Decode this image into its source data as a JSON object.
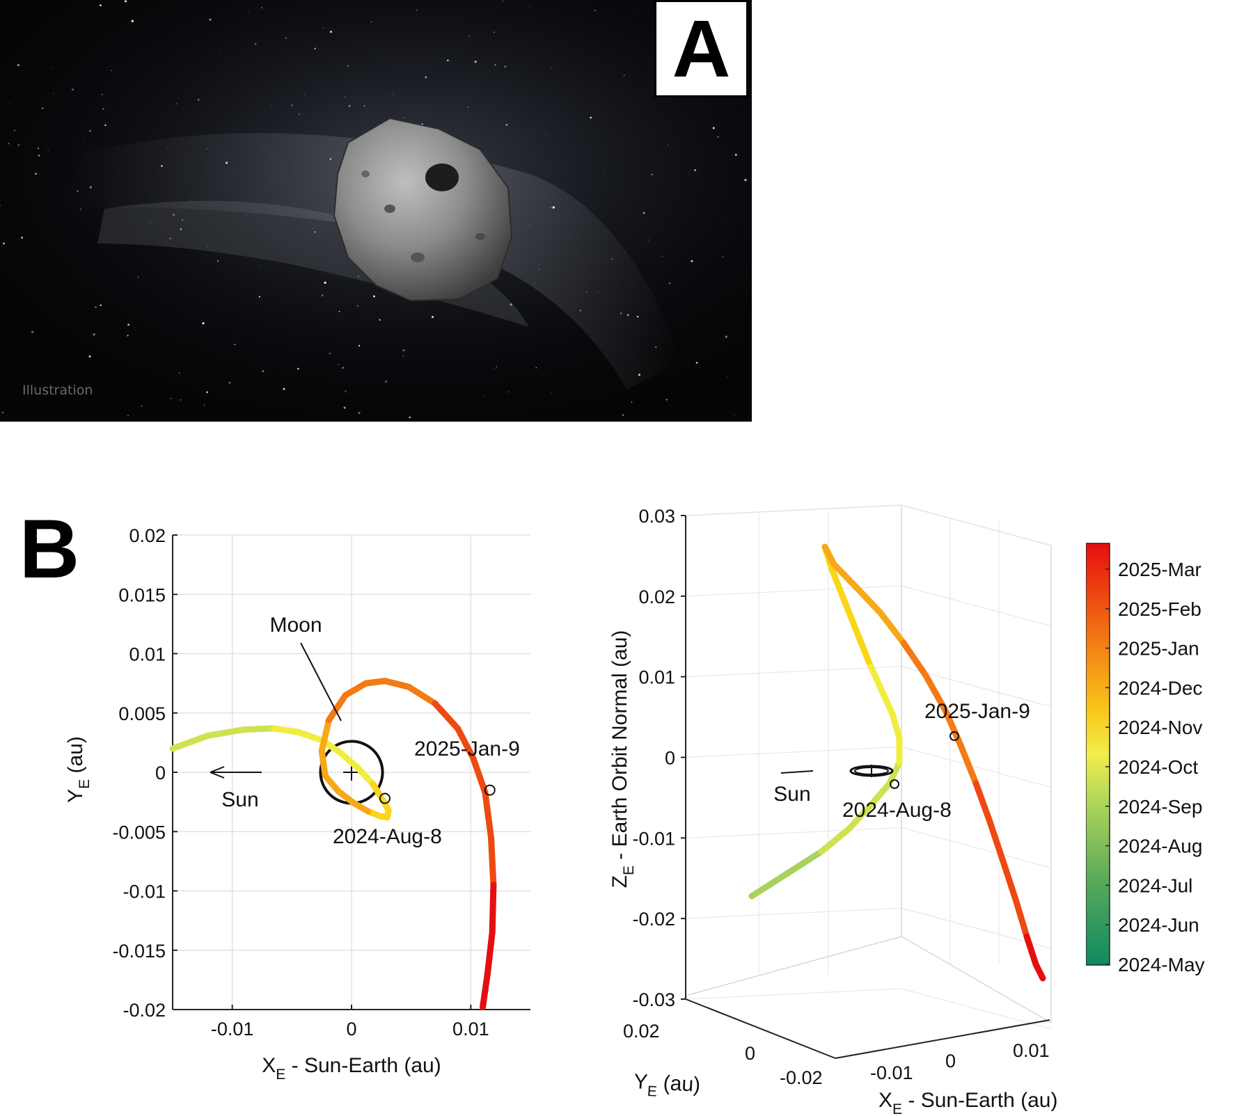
{
  "panel_a": {
    "letter": "A",
    "caption": "Illustration"
  },
  "panel_b": {
    "letter": "B"
  },
  "chart_data": [
    {
      "type": "line",
      "xlabel": "X_E - Sun-Earth (au)",
      "ylabel": "Y_E (au)",
      "xlim": [
        -0.015,
        0.015
      ],
      "ylim": [
        -0.02,
        0.02
      ],
      "xticks": [
        -0.01,
        0,
        0.01
      ],
      "xtick_labels": [
        "-0.01",
        "0",
        "0.01"
      ],
      "yticks": [
        0.02,
        0.015,
        0.01,
        0.005,
        0,
        -0.005,
        -0.01,
        -0.015,
        -0.02
      ],
      "ytick_labels": [
        "0.02",
        "0.015",
        "0.01",
        "0.005",
        "0",
        "-0.005",
        "-0.01",
        "-0.015",
        "-0.02"
      ],
      "grid": true,
      "colormap": "time",
      "series": [
        {
          "x": [
            -0.015,
            -0.012,
            -0.009,
            -0.0065,
            -0.0045,
            -0.0025,
            -0.001,
            0.0005,
            0.0018,
            0.0026,
            0.0031,
            0.003,
            0.0024,
            0.0014,
            0.0002,
            -0.0011,
            -0.0022,
            -0.0025,
            -0.0019,
            -0.0005,
            0.0012,
            0.0028,
            0.0048,
            0.007,
            0.0089,
            0.0102,
            0.0112,
            0.0117,
            0.0119,
            0.0118,
            0.0114,
            0.011
          ],
          "y": [
            0.002,
            0.0031,
            0.0036,
            0.0037,
            0.0034,
            0.0027,
            0.0017,
            0.0004,
            -0.001,
            -0.0023,
            -0.0032,
            -0.0038,
            -0.0037,
            -0.0033,
            -0.0026,
            -0.0016,
            -0.0003,
            0.0018,
            0.0044,
            0.0065,
            0.0075,
            0.0077,
            0.0072,
            0.0058,
            0.0037,
            0.0012,
            -0.0017,
            -0.0055,
            -0.0095,
            -0.0135,
            -0.017,
            -0.0198
          ]
        }
      ],
      "circle_markers": [
        {
          "x": 0.0028,
          "y": -0.0022
        },
        {
          "x": 0.0116,
          "y": -0.0015
        }
      ],
      "moon_orbit": {
        "center": [
          0,
          0
        ],
        "radius": 0.0026
      },
      "sun_arrow": {
        "from": [
          -0.0075,
          0
        ],
        "to": [
          -0.012,
          0
        ]
      },
      "annotations": [
        {
          "text": "Moon",
          "x": -0.0047,
          "y": 0.0122
        },
        {
          "text": "2025-Jan-9",
          "x": 0.0054,
          "y": 0.0019
        },
        {
          "text": "2024-Aug-8",
          "x": -0.0016,
          "y": -0.0055
        },
        {
          "text": "Sun",
          "x": -0.0095,
          "y": -0.0018
        }
      ]
    },
    {
      "type": "line",
      "projection": "3d",
      "xlabel": "X_E - Sun-Earth (au)",
      "ylabel": "Y_E (au)",
      "zlabel": "Z_E - Earth Orbit Normal (au)",
      "xtick_labels": [
        "-0.01",
        "0",
        "0.01"
      ],
      "ytick_labels": [
        "0.02",
        "0",
        "-0.02"
      ],
      "zticks": [
        0.03,
        0.02,
        0.01,
        0,
        -0.01,
        -0.02,
        -0.03
      ],
      "ztick_labels": [
        "0.03",
        "0.02",
        "0.01",
        "0",
        "-0.01",
        "-0.02",
        "-0.03"
      ],
      "zlim": [
        -0.03,
        0.03
      ],
      "grid": true,
      "annotations": [
        {
          "text": "2025-Jan-9"
        },
        {
          "text": "2024-Aug-8"
        },
        {
          "text": "Sun"
        }
      ]
    }
  ],
  "colorbar": {
    "labels": [
      "2025-Mar",
      "2025-Feb",
      "2025-Jan",
      "2024-Dec",
      "2024-Nov",
      "2024-Oct",
      "2024-Sep",
      "2024-Aug",
      "2024-Jul",
      "2024-Jun",
      "2024-May"
    ],
    "colors": [
      "#e60e0e",
      "#ee4912",
      "#f37a14",
      "#f7a817",
      "#f9d619",
      "#f1ed3f",
      "#cfe150",
      "#a7d25c",
      "#7dc05e",
      "#4da75c",
      "#0e8a60"
    ]
  }
}
